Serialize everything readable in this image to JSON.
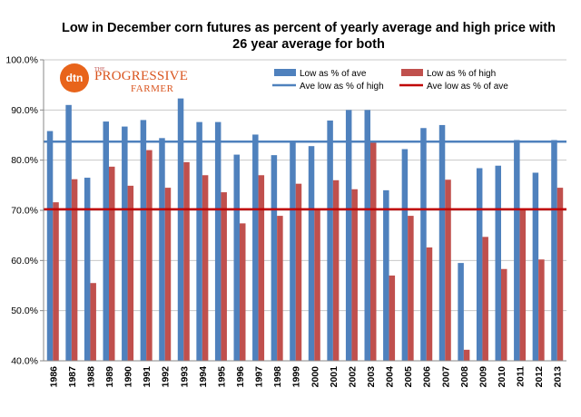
{
  "chart_data": {
    "type": "bar",
    "title": "Low in December corn futures as percent of yearly average and high price with 26 year average for both",
    "categories": [
      "1986",
      "1987",
      "1988",
      "1989",
      "1990",
      "1991",
      "1992",
      "1993",
      "1994",
      "1995",
      "1996",
      "1997",
      "1998",
      "1999",
      "2000",
      "2001",
      "2002",
      "2003",
      "2004",
      "2005",
      "2006",
      "2007",
      "2008",
      "2009",
      "2010",
      "2011",
      "2012",
      "2013"
    ],
    "series": [
      {
        "name": "Low as % of ave",
        "color": "#4f81bd",
        "values": [
          85.8,
          91.0,
          76.5,
          87.7,
          86.7,
          88.0,
          84.4,
          92.3,
          87.6,
          87.6,
          81.1,
          85.1,
          81.0,
          83.7,
          82.8,
          87.9,
          90.0,
          90.0,
          74.0,
          82.2,
          86.4,
          87.0,
          59.5,
          78.4,
          78.9,
          84.0,
          77.5,
          84.0
        ]
      },
      {
        "name": "Low as % of high",
        "color": "#c0504d",
        "values": [
          71.6,
          76.2,
          55.5,
          78.7,
          74.9,
          82.0,
          74.5,
          79.6,
          77.0,
          73.6,
          67.4,
          77.0,
          68.9,
          75.3,
          70.3,
          76.0,
          74.2,
          83.5,
          57.0,
          68.9,
          62.6,
          76.1,
          42.2,
          64.7,
          58.3,
          70.2,
          60.2,
          74.5
        ]
      }
    ],
    "reference_lines": [
      {
        "name": "Ave low as % of high",
        "value": 83.7,
        "color": "#4f81bd"
      },
      {
        "name": "Ave low as % of ave",
        "value": 70.2,
        "color": "#c00000"
      }
    ],
    "ylim": [
      40,
      100
    ],
    "yticks": [
      40,
      50,
      60,
      70,
      80,
      90,
      100
    ],
    "y_tick_labels": [
      "40.0%",
      "50.0%",
      "60.0%",
      "70.0%",
      "80.0%",
      "90.0%",
      "100.0%"
    ],
    "grid": true,
    "legend_position": "top-right"
  },
  "logo": {
    "mark": "dtn",
    "the": "THE",
    "line1": "PROGRESSIVE",
    "line2": "FARMER"
  }
}
